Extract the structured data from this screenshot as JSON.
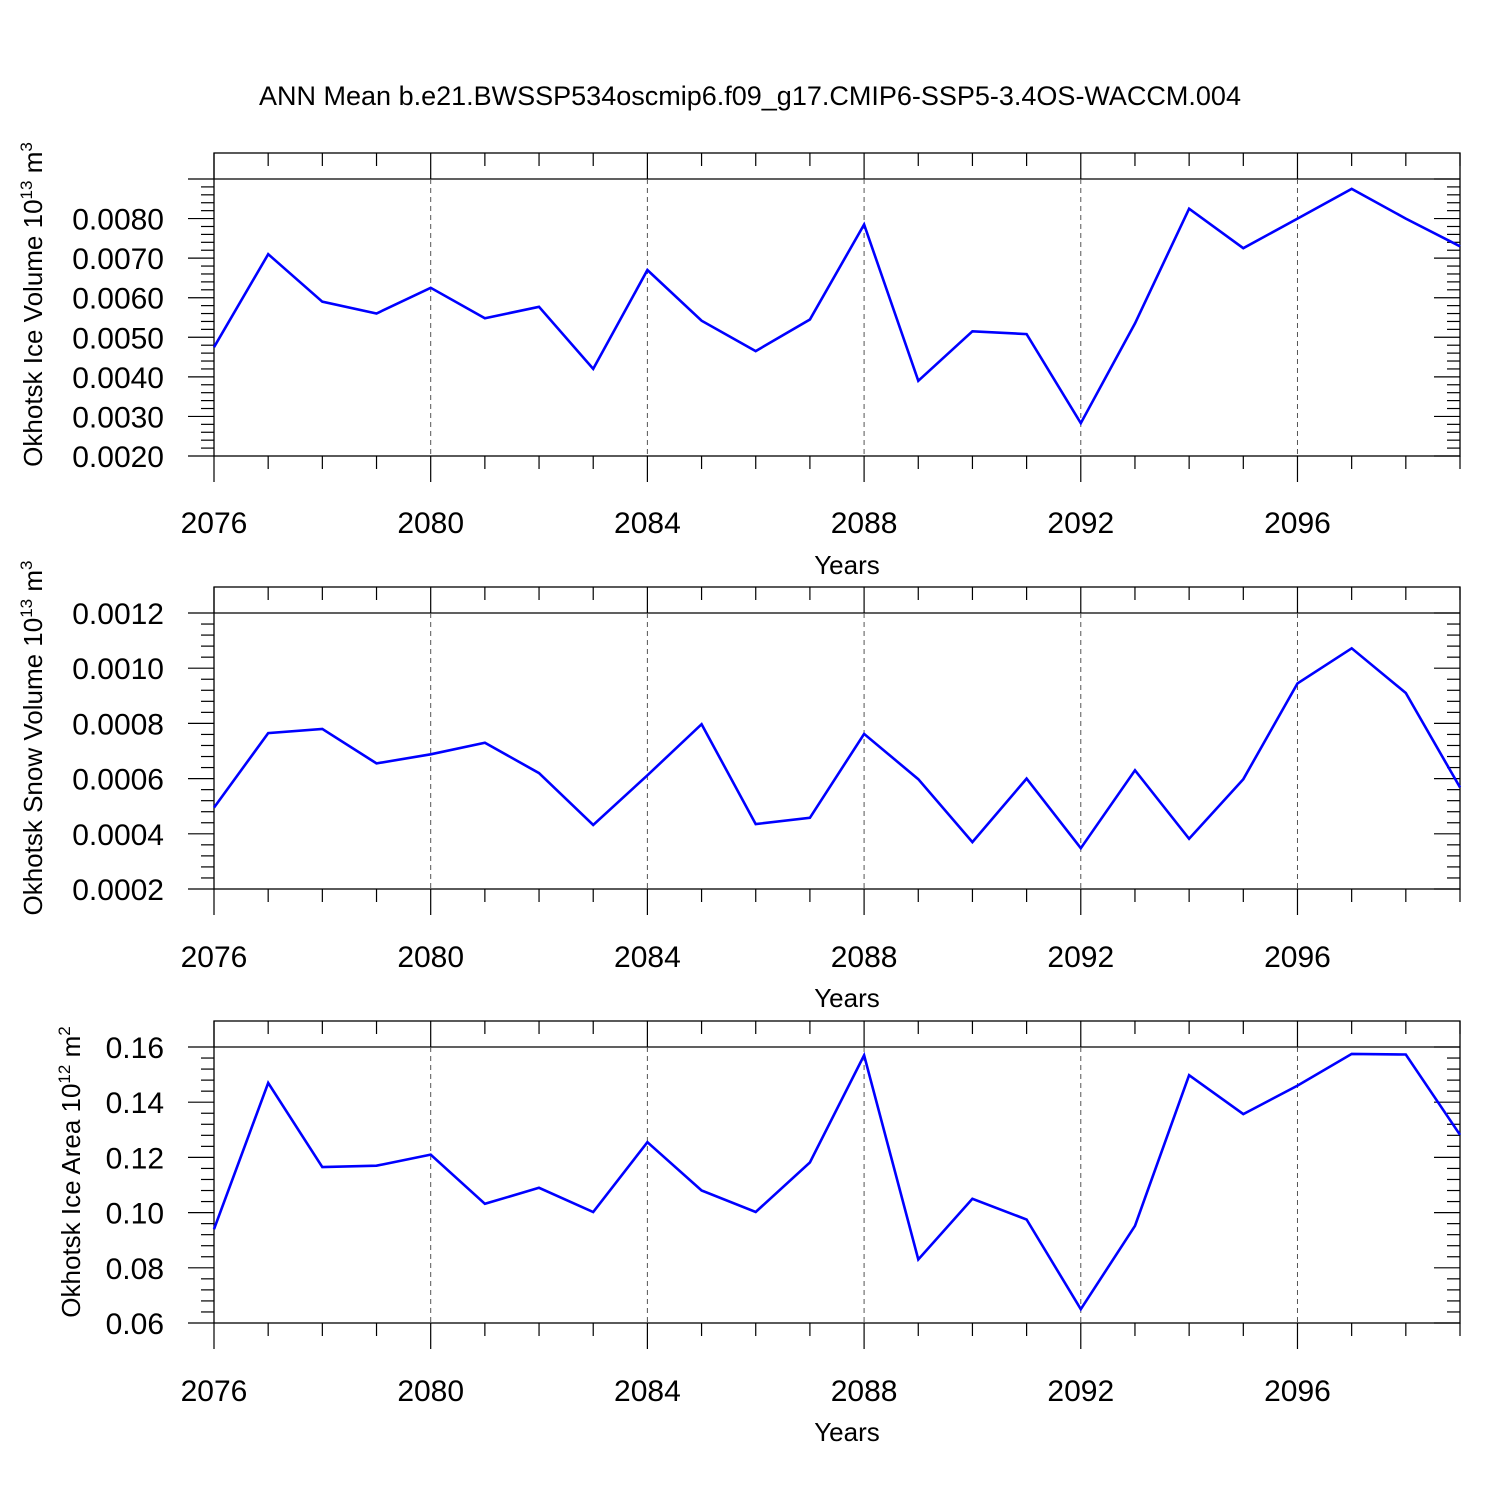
{
  "title": "ANN Mean b.e21.BWSSP534oscmip6.f09_g17.CMIP6-SSP5-3.4OS-WACCM.004",
  "colors": {
    "series": "#0000ff",
    "axis": "#000000",
    "grid": "#555555"
  },
  "chart_data": [
    {
      "type": "line",
      "ylabel": {
        "main": "Okhotsk Ice Volume 10",
        "exp": "13",
        "unit": " m",
        "unit_exp": "3"
      },
      "xlabel": "Years",
      "xlim": [
        2076,
        2099
      ],
      "ylim": [
        0.002,
        0.009
      ],
      "yticks": [
        0.002,
        0.003,
        0.004,
        0.005,
        0.006,
        0.007,
        0.008
      ],
      "ytick_labels": [
        "0.0020",
        "0.0030",
        "0.0040",
        "0.0050",
        "0.0060",
        "0.0070",
        "0.0080"
      ],
      "xticks": [
        2076,
        2080,
        2084,
        2088,
        2092,
        2096
      ],
      "xtick_labels": [
        "2076",
        "2080",
        "2084",
        "2088",
        "2092",
        "2096"
      ],
      "grid_x": [
        2080,
        2084,
        2088,
        2092,
        2096
      ],
      "x": [
        2076,
        2077,
        2078,
        2079,
        2080,
        2081,
        2082,
        2083,
        2084,
        2085,
        2086,
        2087,
        2088,
        2089,
        2090,
        2091,
        2092,
        2093,
        2094,
        2095,
        2096,
        2097,
        2098,
        2099
      ],
      "y": [
        0.00475,
        0.0071,
        0.0059,
        0.0056,
        0.00625,
        0.00548,
        0.00577,
        0.0042,
        0.0067,
        0.00542,
        0.00465,
        0.00545,
        0.00785,
        0.0039,
        0.00515,
        0.00508,
        0.00283,
        0.00535,
        0.00825,
        0.00725,
        0.008,
        0.00875,
        0.008,
        0.0073
      ]
    },
    {
      "type": "line",
      "ylabel": {
        "main": "Okhotsk Snow Volume 10",
        "exp": "13",
        "unit": " m",
        "unit_exp": "3"
      },
      "xlabel": "Years",
      "xlim": [
        2076,
        2099
      ],
      "ylim": [
        0.0002,
        0.0012
      ],
      "yticks": [
        0.0002,
        0.0004,
        0.0006,
        0.0008,
        0.001,
        0.0012
      ],
      "ytick_labels": [
        "0.0002",
        "0.0004",
        "0.0006",
        "0.0008",
        "0.0010",
        "0.0012"
      ],
      "xticks": [
        2076,
        2080,
        2084,
        2088,
        2092,
        2096
      ],
      "xtick_labels": [
        "2076",
        "2080",
        "2084",
        "2088",
        "2092",
        "2096"
      ],
      "grid_x": [
        2080,
        2084,
        2088,
        2092,
        2096
      ],
      "x": [
        2076,
        2077,
        2078,
        2079,
        2080,
        2081,
        2082,
        2083,
        2084,
        2085,
        2086,
        2087,
        2088,
        2089,
        2090,
        2091,
        2092,
        2093,
        2094,
        2095,
        2096,
        2097,
        2098,
        2099
      ],
      "y": [
        0.000495,
        0.000765,
        0.00078,
        0.000655,
        0.000688,
        0.00073,
        0.00062,
        0.000432,
        0.000612,
        0.000797,
        0.000435,
        0.000458,
        0.000762,
        0.000598,
        0.00037,
        0.0006,
        0.000348,
        0.00063,
        0.000382,
        0.000598,
        0.000945,
        0.001072,
        0.00091,
        0.000568
      ]
    },
    {
      "type": "line",
      "ylabel": {
        "main": "Okhotsk Ice Area 10",
        "exp": "12",
        "unit": " m",
        "unit_exp": "2"
      },
      "xlabel": "Years",
      "xlim": [
        2076,
        2099
      ],
      "ylim": [
        0.06,
        0.16
      ],
      "yticks": [
        0.06,
        0.08,
        0.1,
        0.12,
        0.14,
        0.16
      ],
      "ytick_labels": [
        "0.06",
        "0.08",
        "0.10",
        "0.12",
        "0.14",
        "0.16"
      ],
      "xticks": [
        2076,
        2080,
        2084,
        2088,
        2092,
        2096
      ],
      "xtick_labels": [
        "2076",
        "2080",
        "2084",
        "2088",
        "2092",
        "2096"
      ],
      "grid_x": [
        2080,
        2084,
        2088,
        2092,
        2096
      ],
      "x": [
        2076,
        2077,
        2078,
        2079,
        2080,
        2081,
        2082,
        2083,
        2084,
        2085,
        2086,
        2087,
        2088,
        2089,
        2090,
        2091,
        2092,
        2093,
        2094,
        2095,
        2096,
        2097,
        2098,
        2099
      ],
      "y": [
        0.094,
        0.147,
        0.1165,
        0.117,
        0.121,
        0.1032,
        0.109,
        0.1002,
        0.1255,
        0.108,
        0.1002,
        0.1182,
        0.157,
        0.083,
        0.105,
        0.0975,
        0.065,
        0.0952,
        0.1498,
        0.1357,
        0.146,
        0.1575,
        0.1573,
        0.1282
      ]
    }
  ]
}
